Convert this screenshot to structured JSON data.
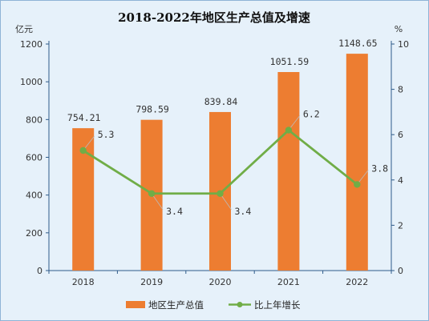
{
  "chart_data": {
    "type": "bar+line",
    "title": "2018-2022年地区生产总值及增速",
    "categories": [
      "2018",
      "2019",
      "2020",
      "2021",
      "2022"
    ],
    "series": [
      {
        "name": "地区生产总值",
        "type": "bar",
        "axis": "left",
        "values": [
          754.21,
          798.59,
          839.84,
          1051.59,
          1148.65
        ],
        "labels": [
          "754.21",
          "798.59",
          "839.84",
          "1051.59",
          "1148.65"
        ]
      },
      {
        "name": "比上年增长",
        "type": "line",
        "axis": "right",
        "values": [
          5.3,
          3.4,
          3.4,
          6.2,
          3.8
        ],
        "labels": [
          "5.3",
          "3.4",
          "3.4",
          "6.2",
          "3.8"
        ]
      }
    ],
    "ylabel_left": "亿元",
    "ylabel_right": "%",
    "ylim_left": [
      0,
      1200
    ],
    "ylim_right": [
      0,
      10
    ],
    "yticks_left": [
      "0",
      "200",
      "400",
      "600",
      "800",
      "1000",
      "1200"
    ],
    "yticks_right": [
      "0",
      "2",
      "4",
      "6",
      "8",
      "10"
    ],
    "legend_position": "bottom",
    "grid": false,
    "colors": {
      "bar": "#ed7d31",
      "line": "#70ad47",
      "background": "#e6f1fa",
      "axis": "#2e5b8a"
    }
  }
}
